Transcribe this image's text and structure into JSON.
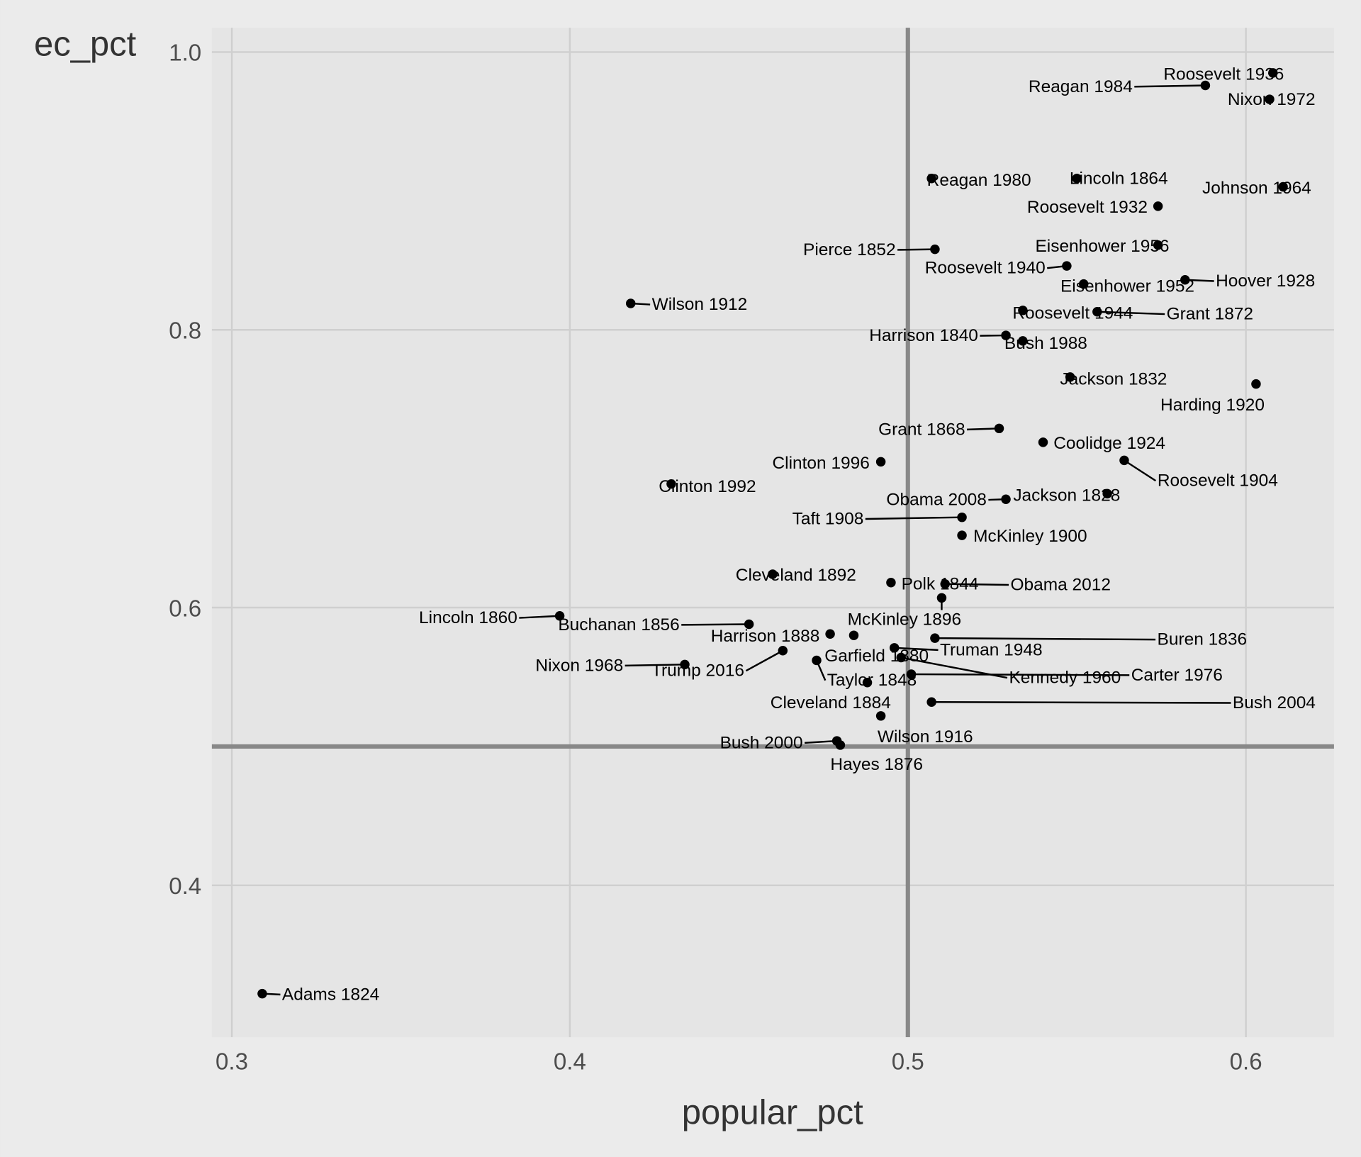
{
  "chart_data": {
    "type": "scatter",
    "title": "",
    "xlabel": "popular_pct",
    "ylabel": "ec_pct",
    "xlim": [
      0.294,
      0.625
    ],
    "ylim": [
      0.293,
      1.017
    ],
    "xticks": [
      0.3,
      0.4,
      0.5,
      0.6
    ],
    "yticks": [
      0.4,
      0.6,
      0.8,
      1.0
    ],
    "xtick_labels": [
      "0.3",
      "0.4",
      "0.5",
      "0.6"
    ],
    "ytick_labels": [
      "0.4",
      "0.6",
      "0.8",
      "1.0"
    ],
    "reference_lines": {
      "vline_x": 0.5,
      "hline_y": 0.5
    },
    "grid": true,
    "points": [
      {
        "label": "Roosevelt 1936",
        "x": 0.608,
        "y": 0.985
      },
      {
        "label": "Reagan 1984",
        "x": 0.588,
        "y": 0.976
      },
      {
        "label": "Nixon 1972",
        "x": 0.607,
        "y": 0.966
      },
      {
        "label": "Reagan 1980",
        "x": 0.507,
        "y": 0.909
      },
      {
        "label": "Lincoln 1864",
        "x": 0.55,
        "y": 0.909
      },
      {
        "label": "Johnson 1964",
        "x": 0.611,
        "y": 0.903
      },
      {
        "label": "Roosevelt 1932",
        "x": 0.574,
        "y": 0.889
      },
      {
        "label": "Pierce 1852",
        "x": 0.508,
        "y": 0.858
      },
      {
        "label": "Eisenhower 1956",
        "x": 0.574,
        "y": 0.861
      },
      {
        "label": "Roosevelt 1940",
        "x": 0.547,
        "y": 0.846
      },
      {
        "label": "Eisenhower 1952",
        "x": 0.552,
        "y": 0.833
      },
      {
        "label": "Hoover 1928",
        "x": 0.582,
        "y": 0.836
      },
      {
        "label": "Wilson 1912",
        "x": 0.418,
        "y": 0.819
      },
      {
        "label": "Roosevelt 1944",
        "x": 0.534,
        "y": 0.814
      },
      {
        "label": "Grant 1872",
        "x": 0.556,
        "y": 0.813
      },
      {
        "label": "Harrison 1840",
        "x": 0.529,
        "y": 0.796
      },
      {
        "label": "Bush 1988",
        "x": 0.534,
        "y": 0.792
      },
      {
        "label": "Jackson 1832",
        "x": 0.548,
        "y": 0.766
      },
      {
        "label": "Harding 1920",
        "x": 0.603,
        "y": 0.761
      },
      {
        "label": "Grant 1868",
        "x": 0.527,
        "y": 0.729
      },
      {
        "label": "Coolidge 1924",
        "x": 0.54,
        "y": 0.719
      },
      {
        "label": "Roosevelt 1904",
        "x": 0.564,
        "y": 0.706
      },
      {
        "label": "Clinton 1996",
        "x": 0.492,
        "y": 0.705
      },
      {
        "label": "Clinton 1992",
        "x": 0.43,
        "y": 0.689
      },
      {
        "label": "Jackson 1828",
        "x": 0.559,
        "y": 0.682
      },
      {
        "label": "Obama 2008",
        "x": 0.529,
        "y": 0.678
      },
      {
        "label": "Taft 1908",
        "x": 0.516,
        "y": 0.665
      },
      {
        "label": "McKinley 1900",
        "x": 0.516,
        "y": 0.652
      },
      {
        "label": "Cleveland 1892",
        "x": 0.46,
        "y": 0.624
      },
      {
        "label": "Polk 1844",
        "x": 0.495,
        "y": 0.618
      },
      {
        "label": "Obama 2012",
        "x": 0.511,
        "y": 0.617
      },
      {
        "label": "McKinley 1896",
        "x": 0.51,
        "y": 0.607
      },
      {
        "label": "Lincoln 1860",
        "x": 0.397,
        "y": 0.594
      },
      {
        "label": "Buchanan 1856",
        "x": 0.453,
        "y": 0.588
      },
      {
        "label": "Harrison 1888",
        "x": 0.477,
        "y": 0.581
      },
      {
        "label": "Garfield 1880",
        "x": 0.484,
        "y": 0.58
      },
      {
        "label": "Buren 1836",
        "x": 0.508,
        "y": 0.578
      },
      {
        "label": "Truman 1948",
        "x": 0.496,
        "y": 0.571
      },
      {
        "label": "Trump 2016",
        "x": 0.463,
        "y": 0.569
      },
      {
        "label": "Kennedy 1960",
        "x": 0.498,
        "y": 0.564
      },
      {
        "label": "Taylor 1848",
        "x": 0.473,
        "y": 0.562
      },
      {
        "label": "Nixon 1968",
        "x": 0.434,
        "y": 0.559
      },
      {
        "label": "Carter 1976",
        "x": 0.501,
        "y": 0.552
      },
      {
        "label": "Cleveland 1884",
        "x": 0.488,
        "y": 0.546
      },
      {
        "label": "Bush 2004",
        "x": 0.507,
        "y": 0.532
      },
      {
        "label": "Wilson 1916",
        "x": 0.492,
        "y": 0.522
      },
      {
        "label": "Bush 2000",
        "x": 0.479,
        "y": 0.504
      },
      {
        "label": "Hayes 1876",
        "x": 0.48,
        "y": 0.501
      },
      {
        "label": "Adams 1824",
        "x": 0.309,
        "y": 0.322
      }
    ]
  }
}
